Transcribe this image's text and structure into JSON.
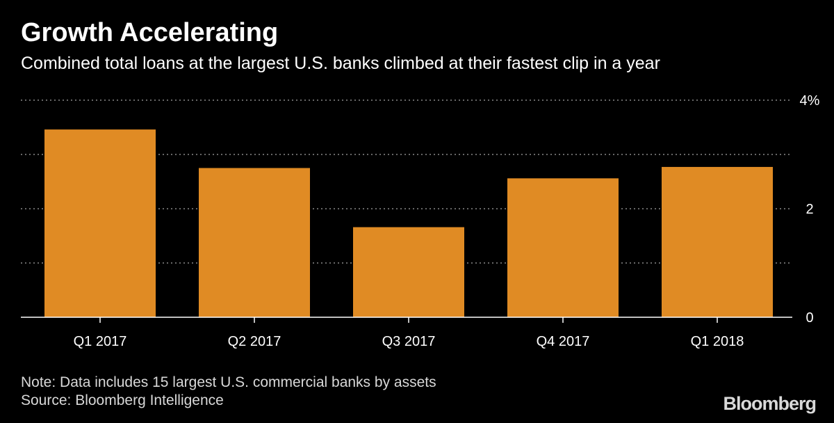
{
  "title": "Growth Accelerating",
  "subtitle": "Combined total loans at the largest U.S. banks climbed at their fastest clip in a year",
  "note": "Note: Data includes 15 largest U.S. commercial banks by assets",
  "source": "Source: Bloomberg Intelligence",
  "brand": "Bloomberg",
  "colors": {
    "background": "#000000",
    "bar": "#e08b24",
    "grid": "#8a8a8a",
    "text": "#ffffff"
  },
  "chart_data": {
    "type": "bar",
    "categories": [
      "Q1 2017",
      "Q2 2017",
      "Q3 2017",
      "Q4 2017",
      "Q1 2018"
    ],
    "values": [
      3.46,
      2.75,
      1.66,
      2.56,
      2.77
    ],
    "unit": "%",
    "ylim": [
      0,
      4
    ],
    "yticks": [
      0,
      1,
      2,
      3,
      4
    ],
    "ytick_labels": [
      "0",
      "",
      "2",
      "",
      "4%"
    ],
    "y_axis_side": "right",
    "grid": true,
    "xlabel": "",
    "ylabel": ""
  }
}
